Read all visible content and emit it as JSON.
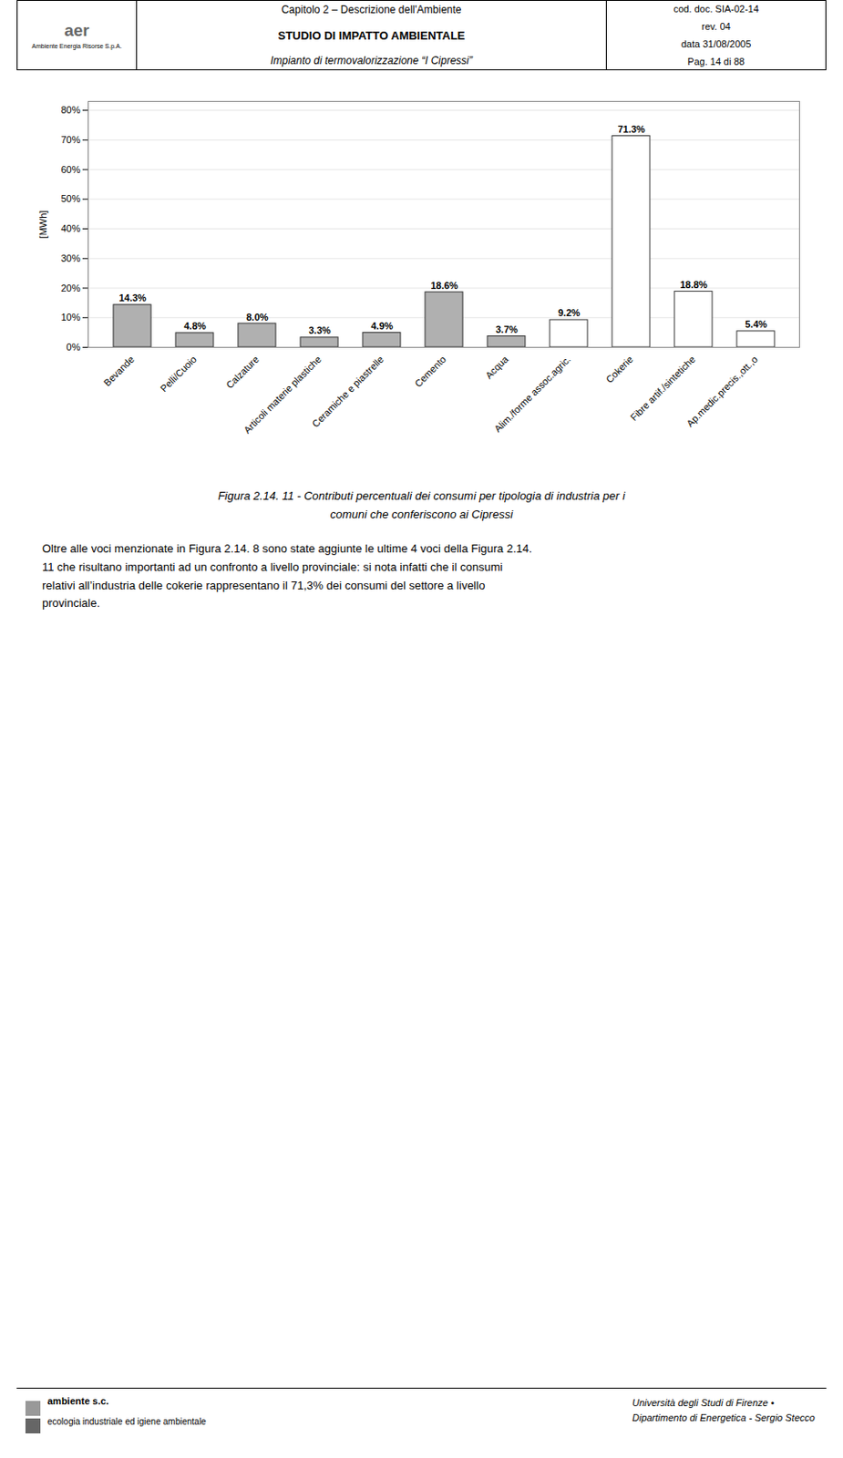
{
  "chart_data": {
    "type": "bar",
    "categories": [
      "Bevande",
      "Pelli/Cuoio",
      "Calzature",
      "Articoli materie plastiche",
      "Ceramiche e piastrelle",
      "Cemento",
      "Acqua",
      "Alim./forme assoc.agric.",
      "Cokerie",
      "Fibre artif./sintetiche",
      "Ap.medic.precis.,ott.,o"
    ],
    "values": [
      14.3,
      4.8,
      8.0,
      3.3,
      4.9,
      18.6,
      3.7,
      9.2,
      71.3,
      18.8,
      5.4
    ],
    "value_labels": [
      "14.3%",
      "4.8%",
      "8.0%",
      "3.3%",
      "4.9%",
      "18.6%",
      "3.7%",
      "9.2%",
      "71.3%",
      "18.8%",
      "5.4%"
    ],
    "data_labels": true,
    "colors": [
      "#b0b0b0",
      "#b0b0b0",
      "#b0b0b0",
      "#b0b0b0",
      "#b0b0b0",
      "#b0b0b0",
      "#b0b0b0",
      "#ffffff",
      "#ffffff",
      "#ffffff",
      "#ffffff"
    ],
    "ylabel": "[MWh]",
    "ylim": [
      0,
      83
    ],
    "yticks": [
      {
        "value": 0,
        "label": "0%"
      },
      {
        "value": 10,
        "label": "10%"
      },
      {
        "value": 20,
        "label": "20%"
      },
      {
        "value": 30,
        "label": "30%"
      },
      {
        "value": 40,
        "label": "40%"
      },
      {
        "value": 50,
        "label": "50%"
      },
      {
        "value": 60,
        "label": "60%"
      },
      {
        "value": 70,
        "label": "70%"
      },
      {
        "value": 80,
        "label": "80%"
      }
    ],
    "grid": true,
    "annotations": [
      "aer",
      "Ambiente Energia Risorse S.p.A.",
      "Capitolo 2 – Descrizione dell'Ambiente",
      "STUDIO DI IMPATTO AMBIENTALE",
      "Impianto di termovalorizzazione “I Cipressi”",
      "cod. doc. SIA-02-14",
      "rev. 04",
      "data 31/08/2005",
      "Pag. 14 di 88",
      "Figura 2.14. 11 - Contributi percentuali dei consumi per tipologia di industria per i",
      "comuni che conferiscono ai Cipressi",
      "Oltre alle voci menzionate in Figura 2.14. 8 sono state aggiunte le ultime 4 voci della Figura 2.14.",
      "11 che risultano importanti ad un confronto a livello provinciale: si nota infatti che il consumi",
      "relativi all’industria delle cokerie rappresentano il 71,3% dei consumi del settore a livello",
      "provinciale.",
      "ambiente s.c.",
      "ecologia industriale ed igiene ambientale",
      "Università degli Studi di Firenze •",
      "Dipartimento di Energetica - Sergio Stecco"
    ]
  }
}
